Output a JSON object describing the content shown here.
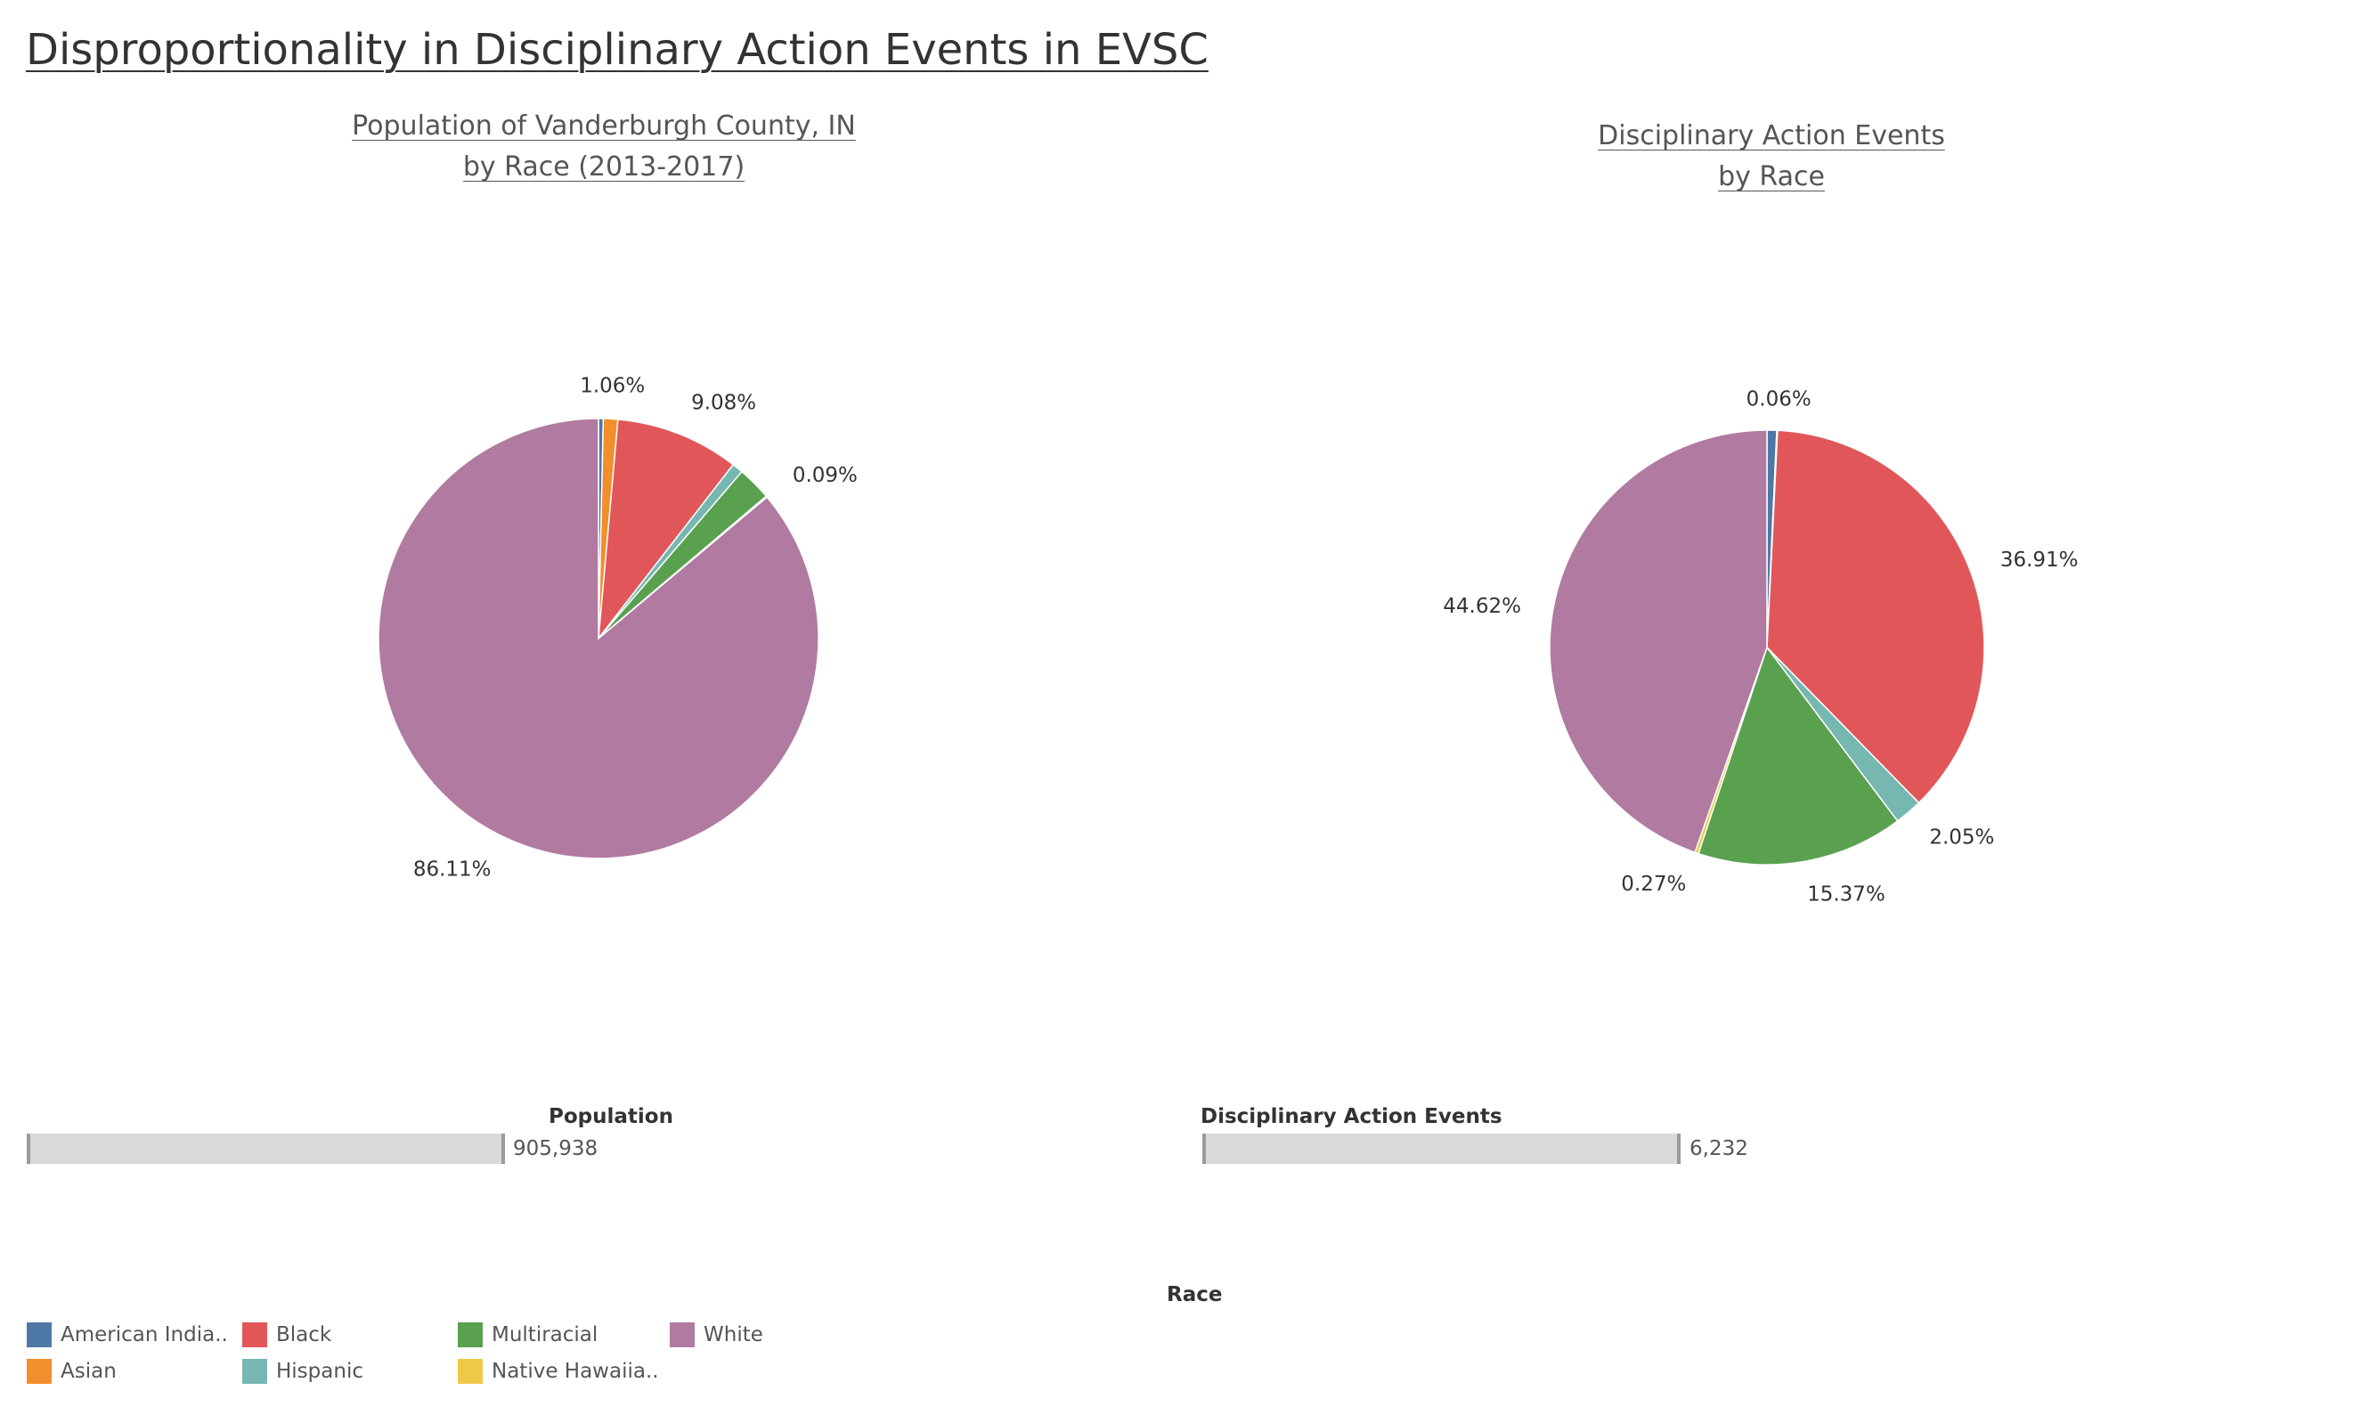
{
  "page_title": "Disproportionality in Disciplinary Action Events in EVSC",
  "colors": {
    "American Indian": "#4e79a7",
    "Asian": "#f28e2b",
    "Black": "#e15759",
    "Hispanic": "#76b7b2",
    "Multiracial": "#59a14f",
    "Native Hawaiian": "#edc948",
    "White": "#b07aa1"
  },
  "chart_data": [
    {
      "type": "pie",
      "title": [
        "Population of Vanderburgh County, IN",
        "by Race (2013-2017)"
      ],
      "categories": [
        "American Indian",
        "Asian",
        "Black",
        "Hispanic",
        "Multiracial",
        "Native Hawaiian",
        "White"
      ],
      "values": [
        0.35,
        1.06,
        9.08,
        0.81,
        2.5,
        0.09,
        86.11
      ],
      "data_labels": [
        "",
        "1.06%",
        "9.08%",
        "",
        "",
        "0.09%",
        "86.11%"
      ]
    },
    {
      "type": "pie",
      "title": [
        "Disciplinary Action Events",
        "by Race"
      ],
      "categories": [
        "American Indian",
        "Asian",
        "Black",
        "Hispanic",
        "Multiracial",
        "Native Hawaiian",
        "White"
      ],
      "values": [
        0.72,
        0.06,
        36.91,
        2.05,
        15.37,
        0.27,
        44.62
      ],
      "data_labels": [
        "",
        "0.06%",
        "36.91%",
        "2.05%",
        "15.37%",
        "0.27%",
        "44.62%"
      ]
    }
  ],
  "filters": {
    "population": {
      "title": "Population",
      "value": "905,938"
    },
    "events": {
      "title": "Disciplinary Action Events",
      "value": "6,232"
    }
  },
  "legend": {
    "title": "Race",
    "items": [
      {
        "label": "American India..",
        "category": "American Indian"
      },
      {
        "label": "Asian",
        "category": "Asian"
      },
      {
        "label": "Black",
        "category": "Black"
      },
      {
        "label": "Hispanic",
        "category": "Hispanic"
      },
      {
        "label": "Multiracial",
        "category": "Multiracial"
      },
      {
        "label": "Native Hawaiia..",
        "category": "Native Hawaiian"
      },
      {
        "label": "White",
        "category": "White"
      }
    ]
  }
}
